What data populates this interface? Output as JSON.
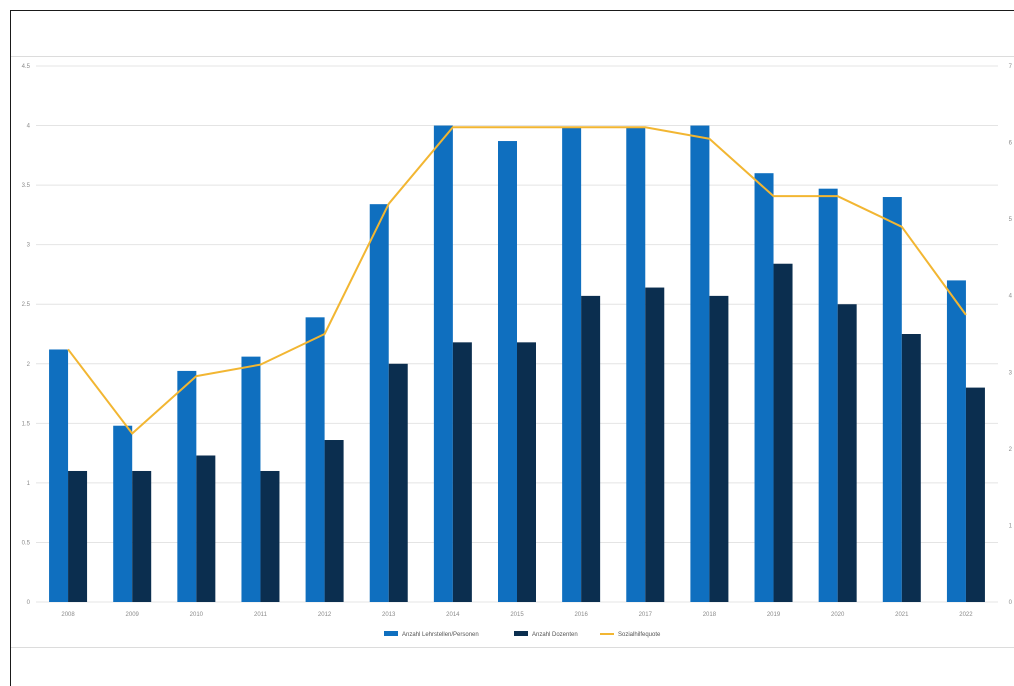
{
  "chart_data": {
    "type": "bar",
    "title": "",
    "xlabel": "",
    "ylabel": "",
    "categories": [
      "2008",
      "2009",
      "2010",
      "2011",
      "2012",
      "2013",
      "2014",
      "2015",
      "2016",
      "2017",
      "2018",
      "2019",
      "2020",
      "2021",
      "2022"
    ],
    "ylim": [
      0,
      4.5
    ],
    "yticks": [
      0,
      0.5,
      1,
      1.5,
      2,
      2.5,
      3,
      3.5,
      4,
      4.5
    ],
    "ytick_labels": [
      "0",
      "0.5",
      "1",
      "1.5",
      "2",
      "2.5",
      "3",
      "3.5",
      "4",
      "4.5"
    ],
    "y2lim": [
      0,
      7
    ],
    "y2ticks": [
      0,
      1,
      2,
      3,
      4,
      5,
      6,
      7
    ],
    "y2tick_labels": [
      "0",
      "1",
      "2",
      "3",
      "4",
      "5",
      "6",
      "7"
    ],
    "grid": true,
    "legend_position": "bottom",
    "series": [
      {
        "name": "Anzahl Lehrstellen/Personen",
        "type": "bar",
        "axis": "left",
        "color": "#0F6FBF",
        "values": [
          2.12,
          1.48,
          1.94,
          2.06,
          2.39,
          3.34,
          4.0,
          3.87,
          3.98,
          3.98,
          4.0,
          3.6,
          3.47,
          3.4,
          2.7
        ]
      },
      {
        "name": "Anzahl Dozenten",
        "type": "bar",
        "axis": "left",
        "color": "#0B2E4F",
        "values": [
          1.1,
          1.1,
          1.23,
          1.1,
          1.36,
          2.0,
          2.18,
          2.18,
          2.57,
          2.64,
          2.57,
          2.84,
          2.5,
          2.25,
          1.8
        ]
      },
      {
        "name": "Sozialhilfequote",
        "type": "line",
        "axis": "right",
        "color": "#F2B632",
        "values": [
          3.3,
          2.2,
          2.95,
          3.1,
          3.5,
          5.2,
          6.2,
          6.2,
          6.2,
          6.2,
          6.05,
          5.3,
          5.3,
          4.9,
          3.75
        ]
      }
    ]
  }
}
